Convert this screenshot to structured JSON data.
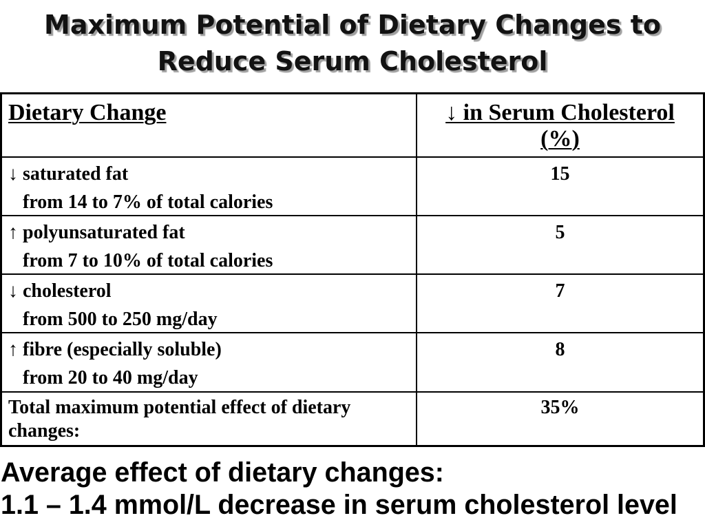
{
  "title": {
    "line1": "Maximum Potential of Dietary Changes to",
    "line2": "Reduce Serum Cholesterol"
  },
  "table": {
    "header": {
      "change": "Dietary Change",
      "effect_line1": "↓ in Serum Cholesterol",
      "effect_line2": "(%)"
    },
    "rows": [
      {
        "arrow": "↓",
        "change": "saturated fat",
        "detail": "from 14 to 7% of total calories",
        "reduction": "15"
      },
      {
        "arrow": "↑",
        "change": "polyunsaturated fat",
        "detail": "from 7 to 10% of total calories",
        "reduction": "5"
      },
      {
        "arrow": "↓",
        "change": "cholesterol",
        "detail": "from 500 to 250 mg/day",
        "reduction": "7"
      },
      {
        "arrow": "↑",
        "change": "fibre (especially soluble)",
        "detail": "from 20 to 40 mg/day",
        "reduction": "8"
      }
    ],
    "total": {
      "label": "Total maximum potential effect of dietary changes:",
      "reduction": "35%"
    }
  },
  "summary": {
    "line1": "Average effect of dietary changes:",
    "line2": "1.1 – 1.4 mmol/L decrease in serum cholesterol level"
  },
  "theme": {
    "title_color": "#121212",
    "title_shadow_color": "#a0a0a0",
    "text_color": "#000000",
    "background": "#ffffff"
  }
}
